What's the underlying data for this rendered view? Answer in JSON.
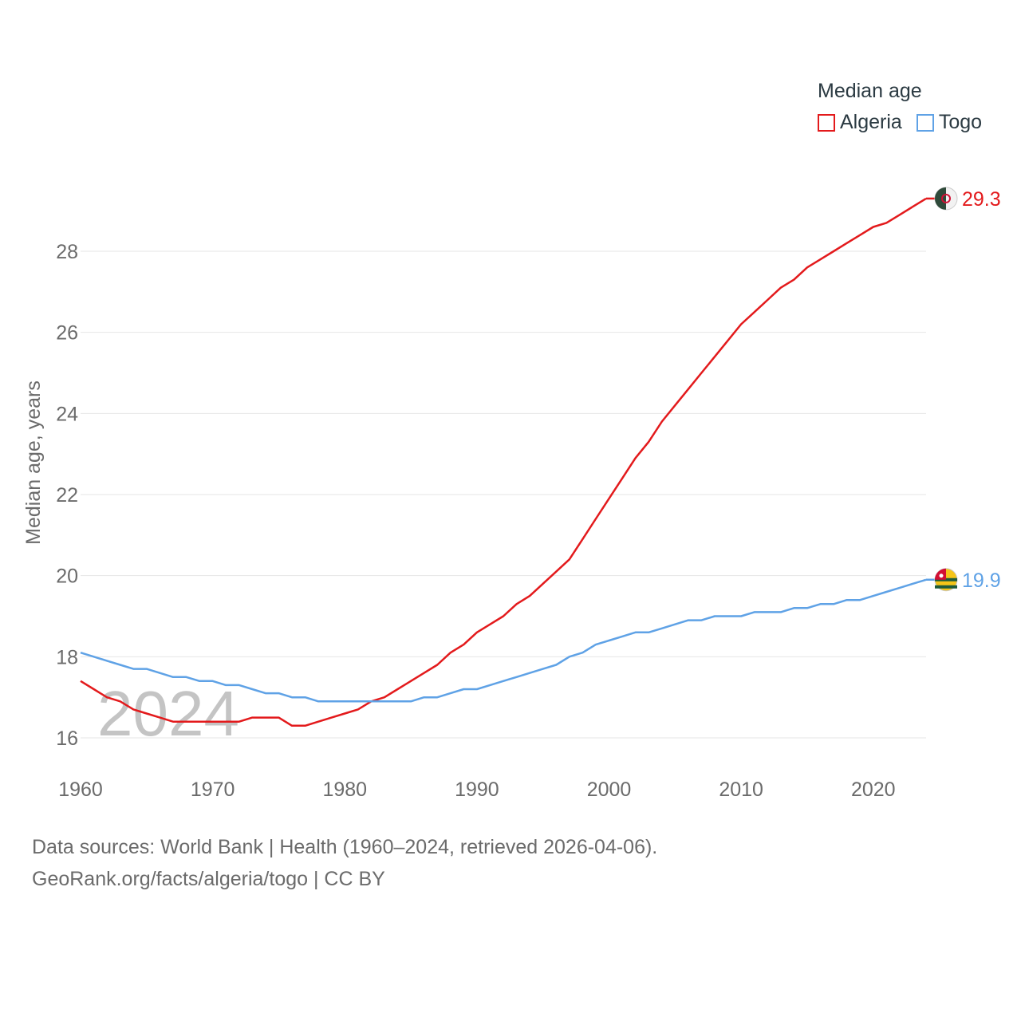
{
  "legend": {
    "title": "Median age",
    "items": [
      {
        "label": "Algeria",
        "color": "#e31a1c"
      },
      {
        "label": "Togo",
        "color": "#5fa2e6"
      }
    ]
  },
  "footer": {
    "line1": "Data sources: World Bank | Health (1960–2024, retrieved 2026-04-06).",
    "line2": "GeoRank.org/facts/algeria/togo | CC BY"
  },
  "chart_data": {
    "type": "line",
    "ylabel": "Median age, years",
    "xlabel": "",
    "year_watermark": "2024",
    "xlim": [
      1960,
      2024
    ],
    "ylim": [
      15.3,
      29.9
    ],
    "x_ticks": [
      1960,
      1970,
      1980,
      1990,
      2000,
      2010,
      2020
    ],
    "y_ticks": [
      16,
      18,
      20,
      22,
      24,
      26,
      28
    ],
    "grid": true,
    "x": [
      1960,
      1961,
      1962,
      1963,
      1964,
      1965,
      1966,
      1967,
      1968,
      1969,
      1970,
      1971,
      1972,
      1973,
      1974,
      1975,
      1976,
      1977,
      1978,
      1979,
      1980,
      1981,
      1982,
      1983,
      1984,
      1985,
      1986,
      1987,
      1988,
      1989,
      1990,
      1991,
      1992,
      1993,
      1994,
      1995,
      1996,
      1997,
      1998,
      1999,
      2000,
      2001,
      2002,
      2003,
      2004,
      2005,
      2006,
      2007,
      2008,
      2009,
      2010,
      2011,
      2012,
      2013,
      2014,
      2015,
      2016,
      2017,
      2018,
      2019,
      2020,
      2021,
      2022,
      2023,
      2024
    ],
    "series": [
      {
        "name": "Algeria",
        "color": "#e31a1c",
        "end_label": "29.3",
        "values": [
          17.4,
          17.2,
          17.0,
          16.9,
          16.7,
          16.6,
          16.5,
          16.4,
          16.4,
          16.4,
          16.4,
          16.4,
          16.4,
          16.5,
          16.5,
          16.5,
          16.3,
          16.3,
          16.4,
          16.5,
          16.6,
          16.7,
          16.9,
          17.0,
          17.2,
          17.4,
          17.6,
          17.8,
          18.1,
          18.3,
          18.6,
          18.8,
          19.0,
          19.3,
          19.5,
          19.8,
          20.1,
          20.4,
          20.9,
          21.4,
          21.9,
          22.4,
          22.9,
          23.3,
          23.8,
          24.2,
          24.6,
          25.0,
          25.4,
          25.8,
          26.2,
          26.5,
          26.8,
          27.1,
          27.3,
          27.6,
          27.8,
          28.0,
          28.2,
          28.4,
          28.6,
          28.7,
          28.9,
          29.1,
          29.3
        ]
      },
      {
        "name": "Togo",
        "color": "#5fa2e6",
        "end_label": "19.9",
        "values": [
          18.1,
          18.0,
          17.9,
          17.8,
          17.7,
          17.7,
          17.6,
          17.5,
          17.5,
          17.4,
          17.4,
          17.3,
          17.3,
          17.2,
          17.1,
          17.1,
          17.0,
          17.0,
          16.9,
          16.9,
          16.9,
          16.9,
          16.9,
          16.9,
          16.9,
          16.9,
          17.0,
          17.0,
          17.1,
          17.2,
          17.2,
          17.3,
          17.4,
          17.5,
          17.6,
          17.7,
          17.8,
          18.0,
          18.1,
          18.3,
          18.4,
          18.5,
          18.6,
          18.6,
          18.7,
          18.8,
          18.9,
          18.9,
          19.0,
          19.0,
          19.0,
          19.1,
          19.1,
          19.1,
          19.2,
          19.2,
          19.3,
          19.3,
          19.4,
          19.4,
          19.5,
          19.6,
          19.7,
          19.8,
          19.9
        ]
      }
    ]
  }
}
